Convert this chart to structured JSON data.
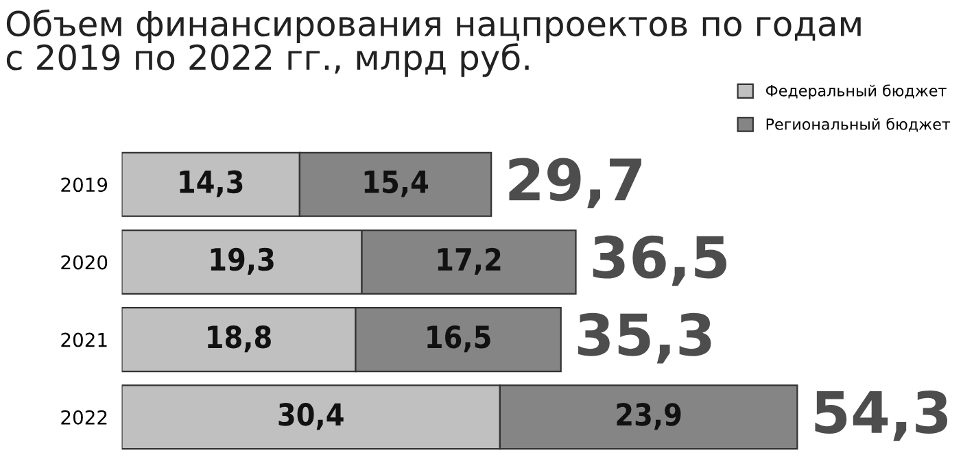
{
  "chart_data": {
    "type": "bar",
    "orientation": "horizontal",
    "stacked": true,
    "title": "Объем финансирования нацпроектов по годам\nс 2019 по 2022 гг., млрд руб.",
    "categories": [
      "2019",
      "2020",
      "2021",
      "2022"
    ],
    "series": [
      {
        "name": "Федеральный бюджет",
        "color": "#c0c0c0",
        "values": [
          14.3,
          19.3,
          18.8,
          30.4
        ],
        "value_labels": [
          "14,3",
          "19,3",
          "18,8",
          "30,4"
        ]
      },
      {
        "name": "Региональный бюджет",
        "color": "#858585",
        "values": [
          15.4,
          17.2,
          16.5,
          23.9
        ],
        "value_labels": [
          "15,4",
          "17,2",
          "16,5",
          "23,9"
        ]
      }
    ],
    "totals": [
      "29,7",
      "36,5",
      "35,3",
      "54,3"
    ],
    "tick_labels": "y",
    "legend": "top right",
    "grid": false
  }
}
